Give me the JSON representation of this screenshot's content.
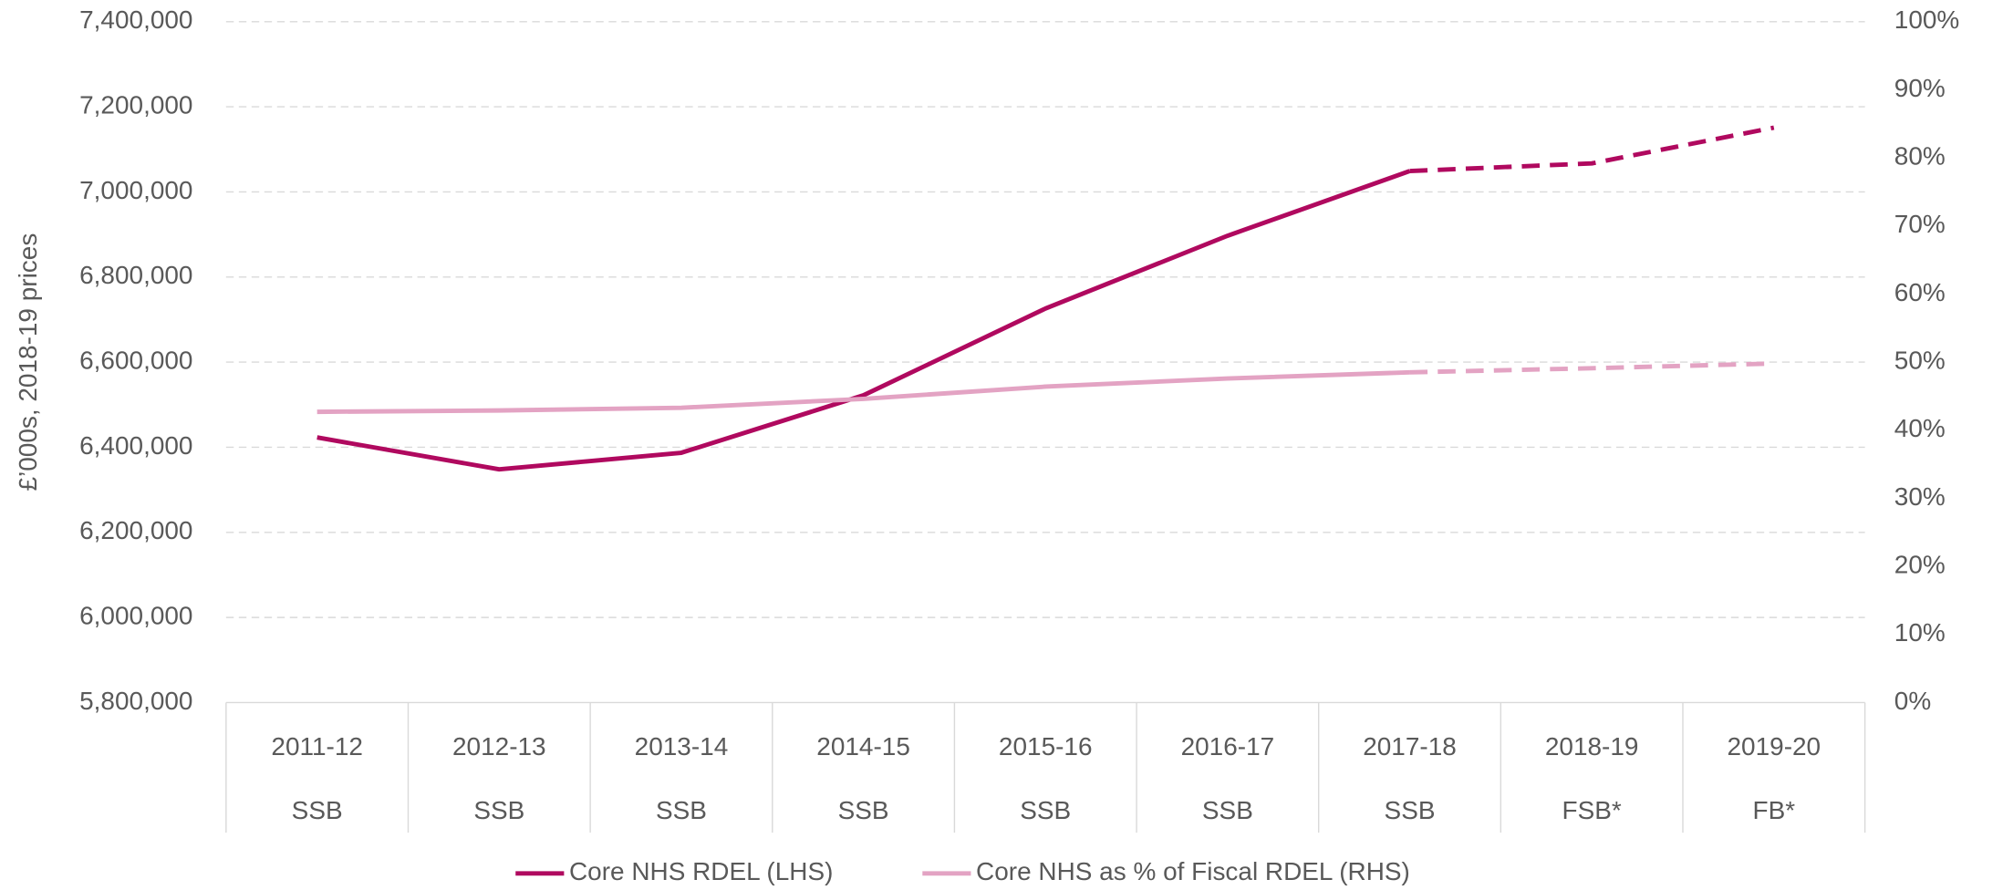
{
  "chart_data": {
    "type": "line",
    "y_label": "£’000s, 2018-19 prices",
    "categories": [
      "2011-12",
      "2012-13",
      "2013-14",
      "2014-15",
      "2015-16",
      "2016-17",
      "2017-18",
      "2018-19",
      "2019-20"
    ],
    "category_sublabels": [
      "SSB",
      "SSB",
      "SSB",
      "SSB",
      "SSB",
      "SSB",
      "SSB",
      "FSB*",
      "FB*"
    ],
    "dashed_from": 6,
    "series": [
      {
        "name": "Core NHS RDEL (LHS)",
        "color": "#b0095f",
        "axis": "y",
        "values": [
          6423000,
          6348000,
          6387000,
          6522000,
          6726000,
          6897000,
          7049000,
          7067000,
          7151000
        ]
      },
      {
        "name": "Core NHS as % of Fiscal RDEL (RHS)",
        "color": "#e3a3c3",
        "axis": "y2",
        "values": [
          42.7,
          42.9,
          43.3,
          44.6,
          46.4,
          47.6,
          48.5,
          49.1,
          49.8
        ]
      }
    ],
    "ylim": [
      5800000,
      7400000
    ],
    "yticks": [
      {
        "value": 5800000,
        "label": "5,800,000"
      },
      {
        "value": 6000000,
        "label": "6,000,000"
      },
      {
        "value": 6200000,
        "label": "6,200,000"
      },
      {
        "value": 6400000,
        "label": "6,400,000"
      },
      {
        "value": 6600000,
        "label": "6,600,000"
      },
      {
        "value": 6800000,
        "label": "6,800,000"
      },
      {
        "value": 7000000,
        "label": "7,000,000"
      },
      {
        "value": 7200000,
        "label": "7,200,000"
      },
      {
        "value": 7400000,
        "label": "7,400,000"
      }
    ],
    "y2lim": [
      0,
      100
    ],
    "y2ticks": [
      {
        "value": 0,
        "label": "0%"
      },
      {
        "value": 10,
        "label": "10%"
      },
      {
        "value": 20,
        "label": "20%"
      },
      {
        "value": 30,
        "label": "30%"
      },
      {
        "value": 40,
        "label": "40%"
      },
      {
        "value": 50,
        "label": "50%"
      },
      {
        "value": 60,
        "label": "60%"
      },
      {
        "value": 70,
        "label": "70%"
      },
      {
        "value": 80,
        "label": "80%"
      },
      {
        "value": 90,
        "label": "90%"
      },
      {
        "value": 100,
        "label": "100%"
      }
    ],
    "grid": true,
    "legend": "bottom"
  }
}
